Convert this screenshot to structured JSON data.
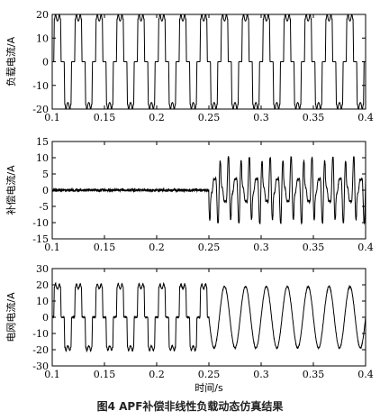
{
  "caption": "图4  APF补偿非线性负载动态仿真结果",
  "chart_data": [
    {
      "type": "line",
      "ylabel": "负载电流/A",
      "xlabel": "",
      "xlim": [
        0.1,
        0.4
      ],
      "ylim": [
        -20,
        20
      ],
      "xticks": [
        "0.1",
        "0.15",
        "0.2",
        "0.25",
        "0.3",
        "0.35",
        "0.4"
      ],
      "yticks": [
        "20",
        "10",
        "0",
        "-10",
        "-20"
      ],
      "signal": {
        "kind": "rectifier_load",
        "frequency_hz": 50,
        "peak_amplitude": 18.5,
        "dead_band_amplitude": 0
      },
      "grid": false
    },
    {
      "type": "line",
      "ylabel": "补偿电流/A",
      "xlabel": "",
      "xlim": [
        0.1,
        0.4
      ],
      "ylim": [
        -15,
        15
      ],
      "xticks": [
        "0.1",
        "0.15",
        "0.2",
        "0.25",
        "0.3",
        "0.35",
        "0.4"
      ],
      "yticks": [
        "15",
        "10",
        "5",
        "0",
        "-5",
        "-10",
        "-15"
      ],
      "signal": {
        "kind": "compensation",
        "off_level": 0,
        "switch_on_time": 0.25,
        "peak_amplitude_after": 10
      },
      "grid": false
    },
    {
      "type": "line",
      "ylabel": "电网电流/A",
      "xlabel": "时间/s",
      "xlim": [
        0.1,
        0.4
      ],
      "ylim": [
        -30,
        30
      ],
      "xticks": [
        "0.1",
        "0.15",
        "0.2",
        "0.25",
        "0.3",
        "0.35",
        "0.4"
      ],
      "yticks": [
        "30",
        "20",
        "10",
        "0",
        "-10",
        "-20",
        "-30"
      ],
      "signal": {
        "kind": "grid",
        "before": "rectifier_load",
        "after": "sine",
        "switch_on_time": 0.25,
        "peak_amplitude": 19,
        "frequency_hz": 50
      },
      "grid": false
    }
  ]
}
